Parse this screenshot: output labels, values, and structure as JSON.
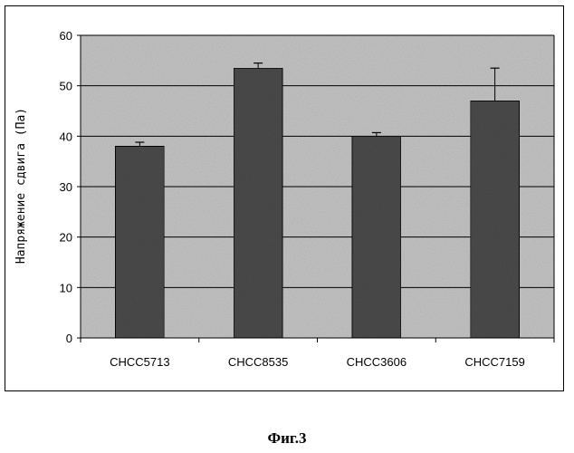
{
  "chart_data": {
    "type": "bar",
    "categories": [
      "CHCC5713",
      "CHCC8535",
      "CHCC3606",
      "CHCC7159"
    ],
    "values": [
      38,
      53.5,
      40,
      47
    ],
    "errors": [
      0.8,
      1.0,
      0.7,
      6.5
    ],
    "ylabel": "Напряжение сдвига (Па)",
    "xlabel": "",
    "ylim": [
      0,
      60
    ],
    "yticks": [
      0,
      10,
      20,
      30,
      40,
      50,
      60
    ],
    "grid": true,
    "legend": "none",
    "colors": {
      "bar": "#4a4a4a",
      "plot_bg": "#c2c2c2",
      "grid": "#000000"
    }
  },
  "caption": "Фиг.3"
}
